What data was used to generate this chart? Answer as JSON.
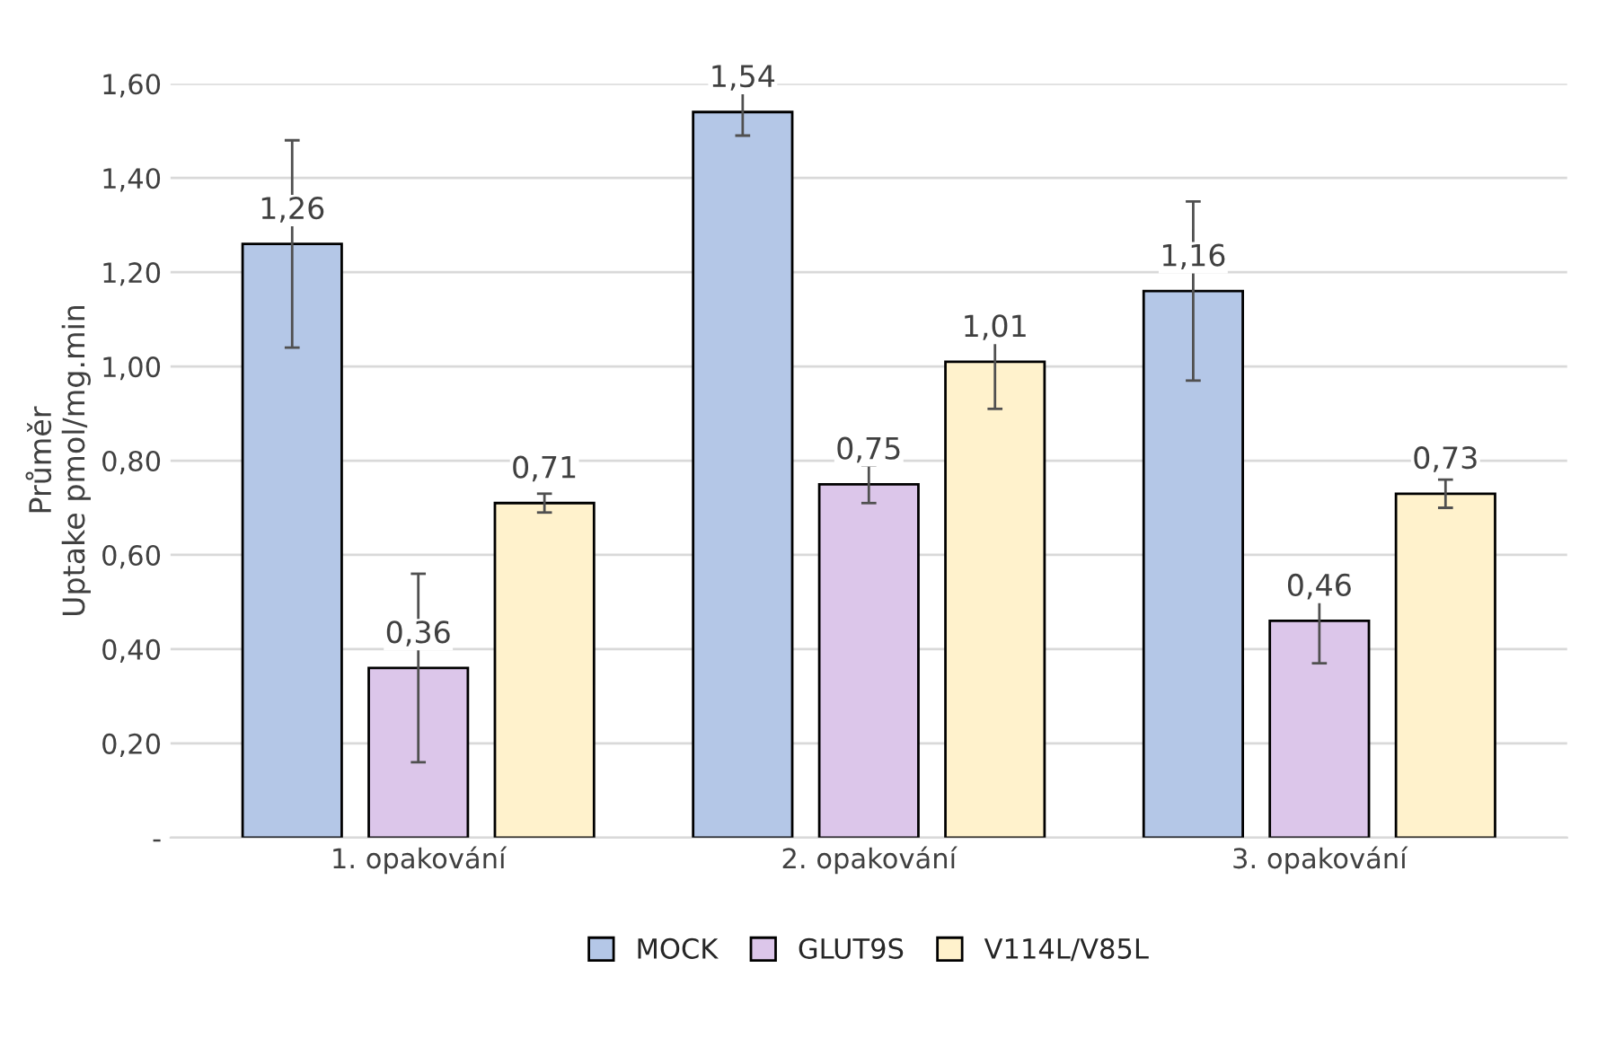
{
  "chart_data": {
    "type": "bar",
    "ylabel": "Průměr\nUptake pmol/mg.min",
    "categories": [
      "1. opakování",
      "2. opakování",
      "3. opakování"
    ],
    "series": [
      {
        "name": "MOCK",
        "color": "#b4c7e7",
        "values": [
          1.26,
          1.54,
          1.16
        ],
        "errors": [
          0.22,
          0.05,
          0.19
        ],
        "value_labels": [
          "1,26",
          "1,54",
          "1,16"
        ]
      },
      {
        "name": "GLUT9S",
        "color": "#dcc6ea",
        "values": [
          0.36,
          0.75,
          0.46
        ],
        "errors": [
          0.2,
          0.04,
          0.09
        ],
        "value_labels": [
          "0,36",
          "0,75",
          "0,46"
        ]
      },
      {
        "name": "V114L/V85L",
        "color": "#fff2cc",
        "values": [
          0.71,
          1.01,
          0.73
        ],
        "errors": [
          0.02,
          0.1,
          0.03
        ],
        "value_labels": [
          "0,71",
          "1,01",
          "0,73"
        ]
      }
    ],
    "ylim": [
      0,
      1.6
    ],
    "yticks": [
      {
        "value": 0,
        "label": "-"
      },
      {
        "value": 0.2,
        "label": "0,20"
      },
      {
        "value": 0.4,
        "label": "0,40"
      },
      {
        "value": 0.6,
        "label": "0,60"
      },
      {
        "value": 0.8,
        "label": "0,80"
      },
      {
        "value": 1.0,
        "label": "1,00"
      },
      {
        "value": 1.2,
        "label": "1,20"
      },
      {
        "value": 1.4,
        "label": "1,40"
      },
      {
        "value": 1.6,
        "label": "1,60"
      }
    ],
    "grid": "y",
    "legend": "bottom"
  }
}
